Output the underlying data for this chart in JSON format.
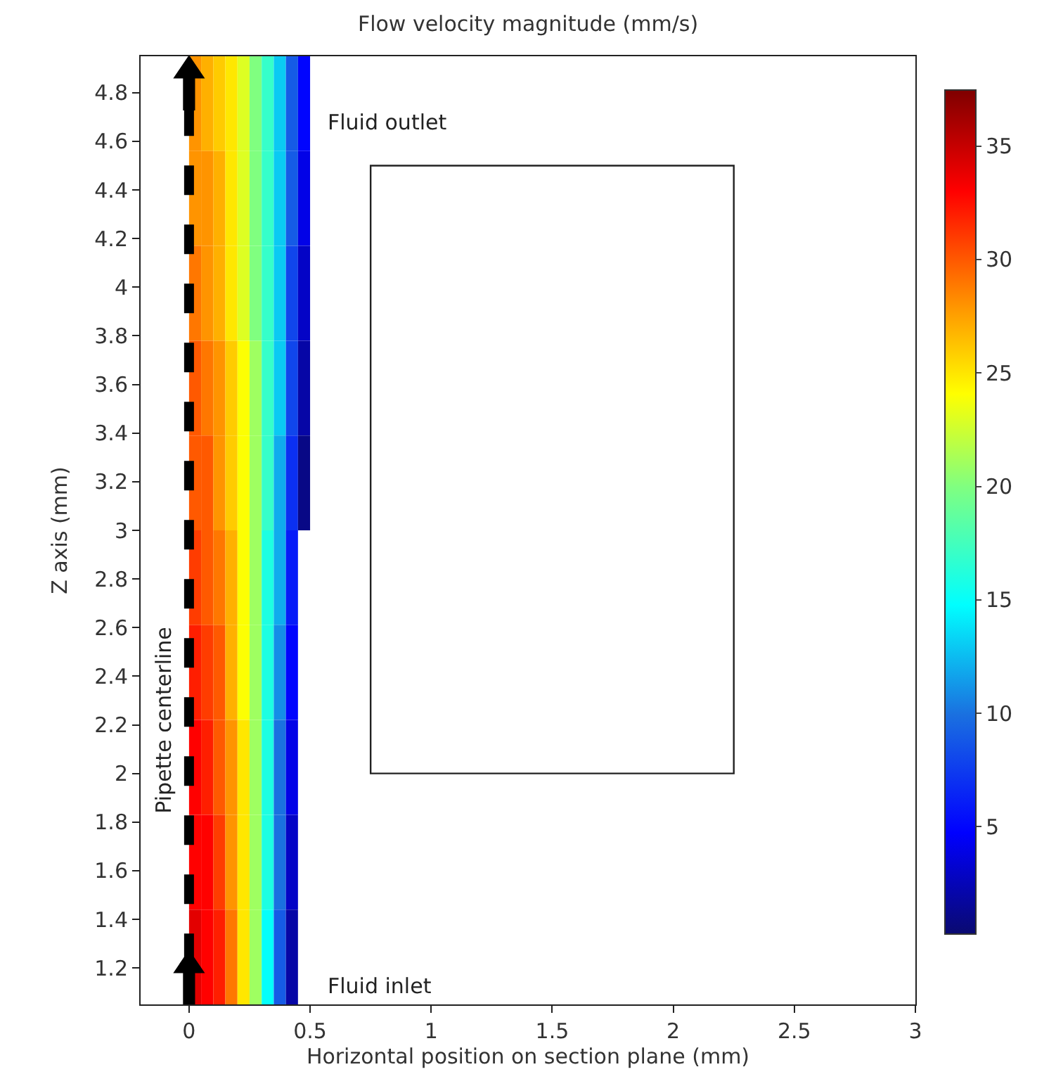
{
  "chart_data": {
    "type": "heatmap",
    "title": "Flow velocity magnitude (mm/s)",
    "xlabel": "Horizontal position on section plane (mm)",
    "ylabel": "Z axis (mm)",
    "x": [
      0.025,
      0.075,
      0.125,
      0.175,
      0.225,
      0.275,
      0.325,
      0.375,
      0.425,
      0.475
    ],
    "y": [
      4.755,
      4.365,
      3.975,
      3.585,
      3.195,
      2.805,
      2.415,
      2.025,
      1.635,
      1.245
    ],
    "cells": [
      [
        28,
        27,
        26,
        25,
        23,
        20,
        17,
        13,
        9,
        5
      ],
      [
        28,
        28,
        27,
        25,
        23,
        20,
        17,
        13,
        9,
        4
      ],
      [
        29,
        28,
        27,
        25,
        23,
        20,
        17,
        13,
        8,
        3
      ],
      [
        30,
        29,
        28,
        26,
        24,
        21,
        17,
        13,
        8,
        2
      ],
      [
        30,
        30,
        28,
        26,
        24,
        21,
        17,
        12,
        7,
        1
      ],
      [
        31,
        30,
        29,
        27,
        24,
        21,
        16,
        12,
        6,
        null
      ],
      [
        32,
        31,
        30,
        27,
        24,
        21,
        16,
        11,
        5,
        null
      ],
      [
        33,
        32,
        30,
        28,
        25,
        21,
        16,
        10,
        4,
        null
      ],
      [
        33,
        33,
        31,
        28,
        25,
        21,
        16,
        10,
        3,
        null
      ],
      [
        34,
        33,
        32,
        29,
        25,
        21,
        15,
        9,
        2,
        null
      ]
    ],
    "clim": [
      0.3,
      37.5
    ],
    "cticks": [
      5,
      10,
      15,
      20,
      25,
      30,
      35
    ],
    "xlim": [
      -0.2,
      3
    ],
    "xticks": [
      0,
      0.5,
      1,
      1.5,
      2,
      2.5,
      3
    ],
    "ylim": [
      1.05,
      4.95
    ],
    "yticks": [
      1.2,
      1.4,
      1.6,
      1.8,
      2,
      2.2,
      2.4,
      2.6,
      2.8,
      3,
      3.2,
      3.4,
      3.6,
      3.8,
      4,
      4.2,
      4.4,
      4.6,
      4.8
    ],
    "annotations": [
      "Fluid outlet",
      "Fluid inlet"
    ],
    "ref_lines": [
      {
        "axis": "x",
        "value": 0,
        "label": "Pipette centerline",
        "color": "#000000",
        "line_style": "dashed"
      }
    ]
  }
}
